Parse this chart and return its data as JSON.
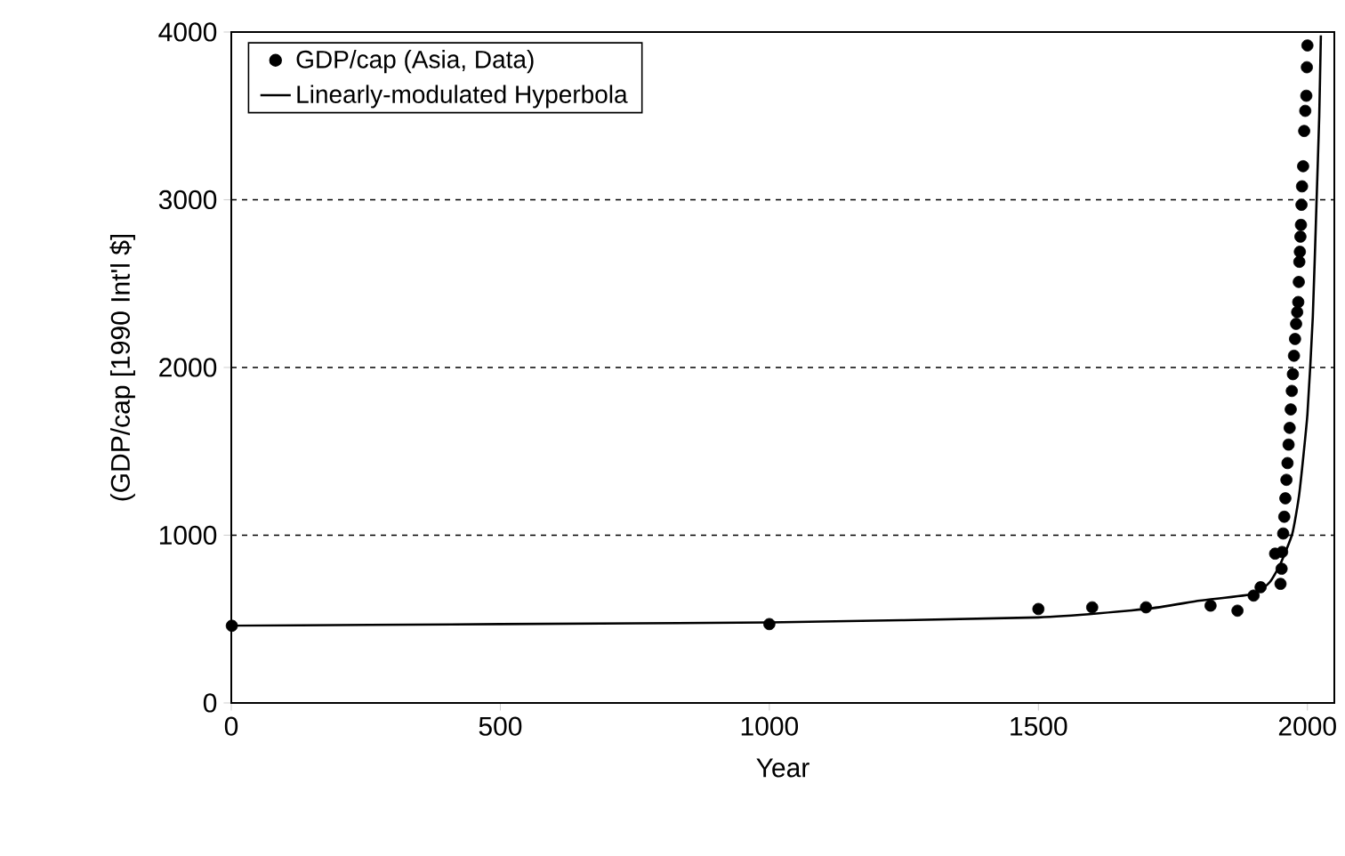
{
  "chart_data": {
    "type": "scatter",
    "xlabel": "Year",
    "ylabel": "(GDP/cap [1990 Int'l $]",
    "xlim": [
      0,
      2050
    ],
    "ylim": [
      0,
      4000
    ],
    "xticks": [
      0,
      500,
      1000,
      1500,
      2000
    ],
    "yticks": [
      0,
      1000,
      2000,
      3000,
      4000
    ],
    "grid": "y",
    "legend": "top left",
    "series": [
      {
        "name": "GDP/cap (Asia, Data)",
        "marker": "circle",
        "color": "#000000",
        "x": [
          1,
          1000,
          1500,
          1600,
          1700,
          1820,
          1870,
          1900,
          1913,
          1940,
          1950,
          1952,
          1953,
          1955,
          1957,
          1959,
          1961,
          1963,
          1965,
          1967,
          1969,
          1971,
          1973,
          1975,
          1977,
          1979,
          1981,
          1983,
          1984,
          1985,
          1986,
          1987,
          1988,
          1989,
          1990,
          1992,
          1994,
          1996,
          1998,
          1999,
          2000
        ],
        "values": [
          460,
          470,
          560,
          570,
          570,
          580,
          550,
          640,
          690,
          890,
          710,
          800,
          900,
          1010,
          1110,
          1220,
          1330,
          1430,
          1540,
          1640,
          1750,
          1860,
          1960,
          2070,
          2170,
          2260,
          2330,
          2390,
          2510,
          2630,
          2690,
          2780,
          2850,
          2970,
          3080,
          3200,
          3410,
          3530,
          3620,
          3790,
          3920
        ]
      },
      {
        "name": "Linearly-modulated Hyperbola",
        "type": "line",
        "line_style": "solid",
        "color": "#000000",
        "x": [
          0,
          500,
          1000,
          1500,
          1700,
          1800,
          1900,
          1930,
          1950,
          1972,
          1985,
          2000,
          2010,
          2017,
          2022,
          2025
        ],
        "values": [
          460,
          470,
          480,
          510,
          560,
          610,
          650,
          720,
          830,
          1010,
          1250,
          1720,
          2300,
          2990,
          3500,
          3980
        ]
      }
    ]
  }
}
